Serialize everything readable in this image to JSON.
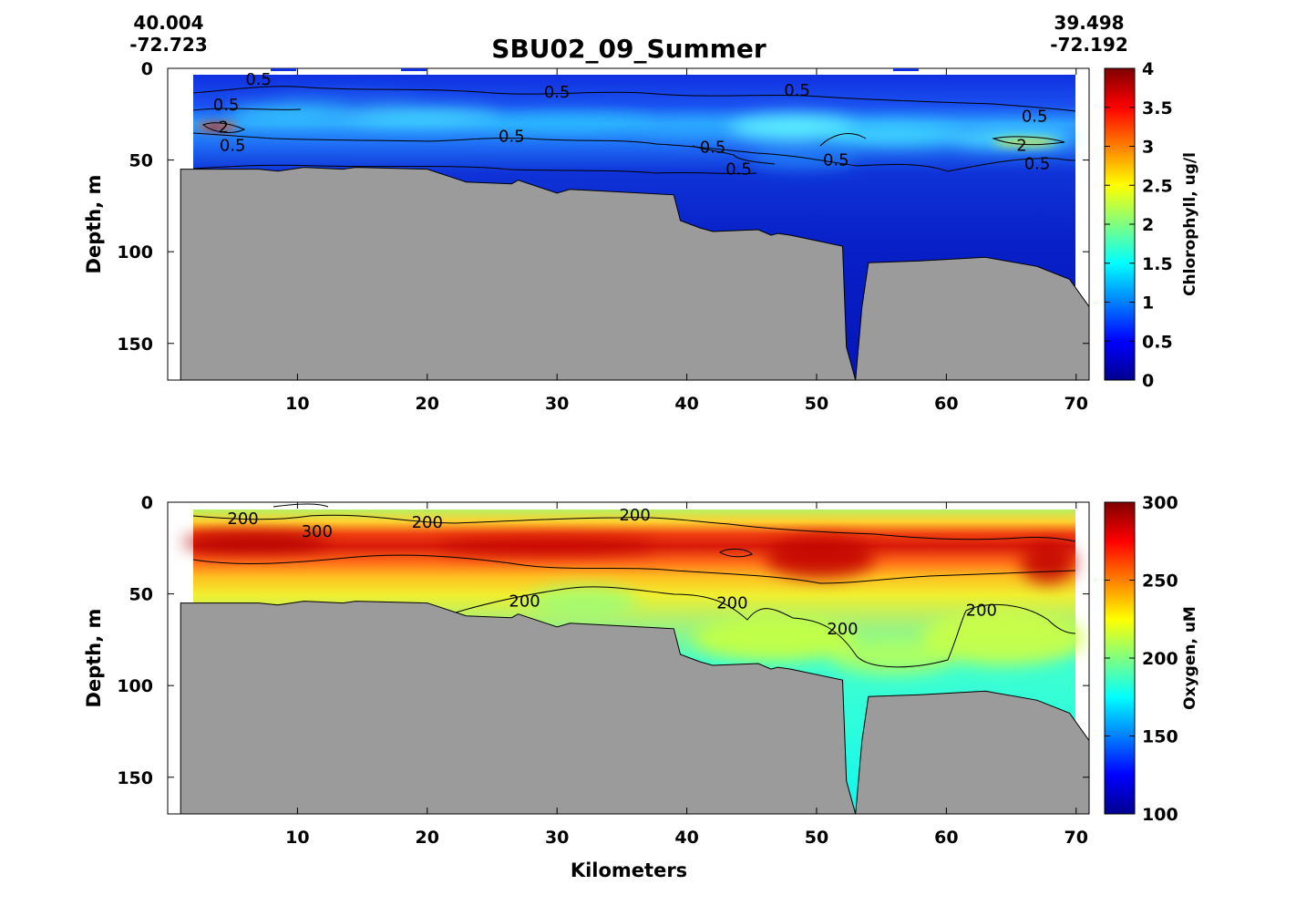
{
  "header": {
    "start_lat": "40.004",
    "start_lon": "-72.723",
    "end_lat": "39.498",
    "end_lon": "-72.192"
  },
  "chart_data": [
    {
      "type": "heatmap",
      "title": "SBU02_09_Summer",
      "xlabel": "",
      "ylabel": "Depth, m",
      "xlim": [
        0,
        71
      ],
      "ylim": [
        170,
        0
      ],
      "x_ticks": [
        10,
        20,
        30,
        40,
        50,
        60,
        70
      ],
      "y_ticks": [
        0,
        50,
        100,
        150
      ],
      "colorbar": {
        "label": "Chlorophyll, ug/l",
        "min": 0,
        "max": 4,
        "ticks": [
          "0",
          "0.5",
          "1",
          "1.5",
          "2",
          "2.5",
          "3",
          "3.5",
          "4"
        ],
        "colormap": "jet"
      },
      "bottom_profile": {
        "x": [
          1,
          1,
          7,
          8.5,
          10.5,
          13.5,
          14.5,
          20,
          23,
          26.5,
          27,
          30,
          31,
          39,
          39.5,
          41,
          42,
          45.5,
          46.5,
          47,
          48,
          52,
          52.3,
          53,
          53.5,
          54,
          58,
          63,
          67,
          69.5,
          71,
          71
        ],
        "depth": [
          170,
          55,
          55,
          56,
          54,
          55,
          54,
          55,
          62,
          63,
          61,
          68,
          66,
          69,
          83,
          87,
          89,
          88,
          91,
          90,
          91,
          97,
          152,
          170,
          130,
          106,
          105,
          103,
          108,
          115,
          130,
          170
        ]
      },
      "contour_labels": [
        {
          "x": 7,
          "depth": 6,
          "text": "0.5"
        },
        {
          "x": 30,
          "depth": 13,
          "text": "0.5"
        },
        {
          "x": 48.5,
          "depth": 12,
          "text": "0.5"
        },
        {
          "x": 66.8,
          "depth": 26,
          "text": "0.5"
        },
        {
          "x": 4.5,
          "depth": 20,
          "text": "0.5"
        },
        {
          "x": 4.3,
          "depth": 32,
          "text": "2"
        },
        {
          "x": 5,
          "depth": 42,
          "text": "0.5"
        },
        {
          "x": 26.5,
          "depth": 37,
          "text": "0.5"
        },
        {
          "x": 42,
          "depth": 43,
          "text": "0.5"
        },
        {
          "x": 44,
          "depth": 55,
          "text": "0.5"
        },
        {
          "x": 51.5,
          "depth": 50,
          "text": "0.5"
        },
        {
          "x": 65.8,
          "depth": 42,
          "text": "2"
        },
        {
          "x": 67,
          "depth": 52,
          "text": "0.5"
        }
      ]
    },
    {
      "type": "heatmap",
      "title": "",
      "xlabel": "Kilometers",
      "ylabel": "Depth, m",
      "xlim": [
        0,
        71
      ],
      "ylim": [
        170,
        0
      ],
      "x_ticks": [
        10,
        20,
        30,
        40,
        50,
        60,
        70
      ],
      "y_ticks": [
        0,
        50,
        100,
        150
      ],
      "colorbar": {
        "label": "Oxygen, uM",
        "min": 100,
        "max": 300,
        "ticks": [
          "100",
          "150",
          "200",
          "250",
          "300"
        ],
        "colormap": "jet"
      },
      "bottom_profile": {
        "x": [
          1,
          1,
          7,
          8.5,
          10.5,
          13.5,
          14.5,
          20,
          23,
          26.5,
          27,
          30,
          31,
          39,
          39.5,
          41,
          42,
          45.5,
          46.5,
          47,
          48,
          52,
          52.3,
          53,
          53.5,
          54,
          58,
          63,
          67,
          69.5,
          71,
          71
        ],
        "depth": [
          170,
          55,
          55,
          56,
          54,
          55,
          54,
          55,
          62,
          63,
          61,
          68,
          66,
          69,
          83,
          87,
          89,
          88,
          91,
          90,
          91,
          97,
          152,
          170,
          130,
          106,
          105,
          103,
          108,
          115,
          130,
          170
        ]
      },
      "contour_labels": [
        {
          "x": 5.8,
          "depth": 9,
          "text": "200"
        },
        {
          "x": 11.5,
          "depth": 16,
          "text": "300"
        },
        {
          "x": 20,
          "depth": 11,
          "text": "200"
        },
        {
          "x": 36,
          "depth": 7,
          "text": "200"
        },
        {
          "x": 27.5,
          "depth": 54,
          "text": "200"
        },
        {
          "x": 43.5,
          "depth": 55,
          "text": "200"
        },
        {
          "x": 52,
          "depth": 69,
          "text": "200"
        },
        {
          "x": 62.7,
          "depth": 59,
          "text": "200"
        }
      ]
    }
  ]
}
